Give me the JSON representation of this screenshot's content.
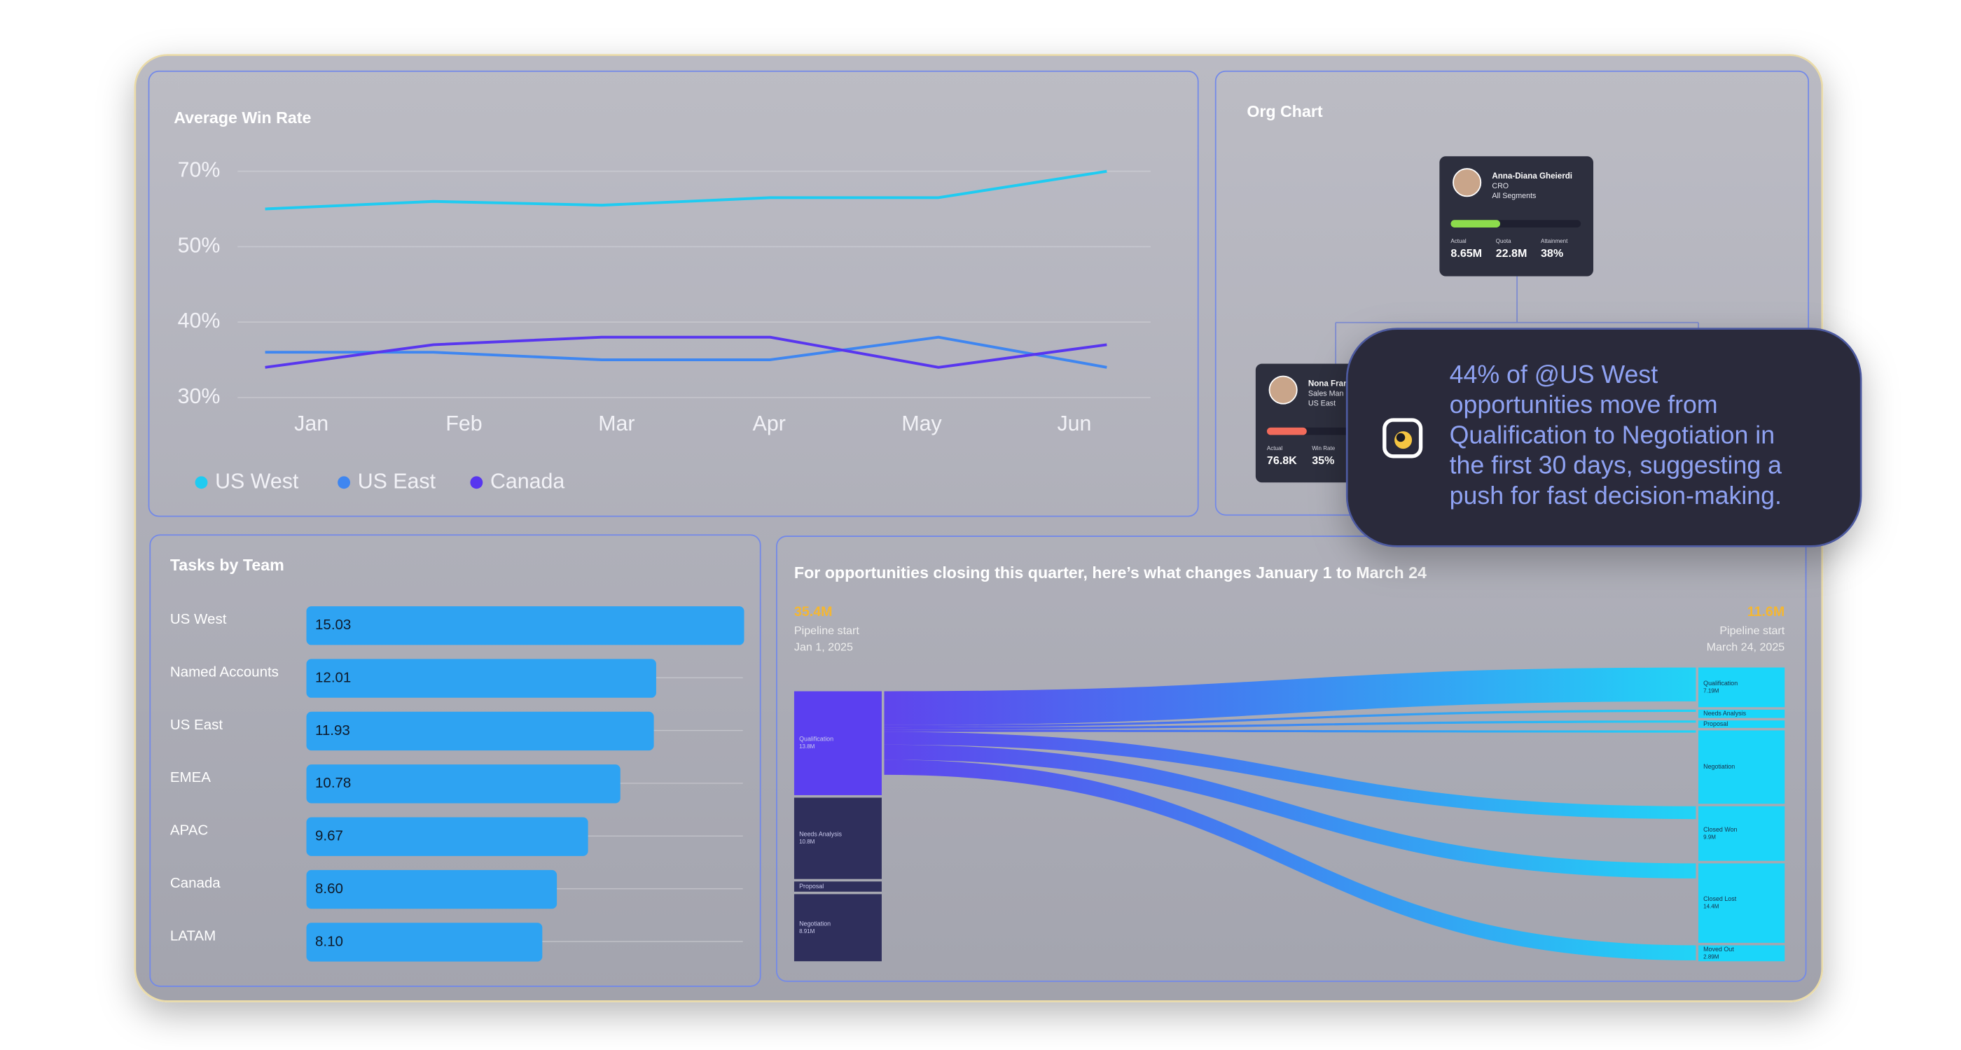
{
  "chart_data": [
    {
      "type": "line",
      "title": "Average Win Rate",
      "categories": [
        "Jan",
        "Feb",
        "Mar",
        "Apr",
        "May",
        "Jun"
      ],
      "series": [
        {
          "name": "US West",
          "color": "#1fcbf1",
          "values": [
            60,
            62,
            61,
            63,
            63,
            70
          ]
        },
        {
          "name": "US East",
          "color": "#3f86f0",
          "values": [
            36,
            36,
            35,
            35,
            38,
            34
          ]
        },
        {
          "name": "Canada",
          "color": "#5836ef",
          "values": [
            34,
            37,
            38,
            38,
            34,
            37
          ]
        }
      ],
      "ylim": [
        30,
        70
      ],
      "yticks": [
        {
          "value": 30,
          "label": "30%"
        },
        {
          "value": 40,
          "label": "40%"
        },
        {
          "value": 50,
          "label": "50%"
        },
        {
          "value": 70,
          "label": "70%"
        }
      ],
      "grid": true,
      "legend": "bottom-left"
    },
    {
      "type": "bar",
      "orientation": "horizontal",
      "title": "Tasks by Team",
      "categories": [
        "US West",
        "Named Accounts",
        "US East",
        "EMEA",
        "APAC",
        "Canada",
        "LATAM"
      ],
      "values": [
        15.03,
        12.01,
        11.93,
        10.78,
        9.67,
        8.6,
        8.1
      ],
      "value_labels": [
        "15.03",
        "12.01",
        "11.93",
        "10.78",
        "9.67",
        "8.60",
        "8.10"
      ],
      "color": "#2ea3f2"
    },
    {
      "type": "sankey",
      "title": "For opportunities closing this quarter, here’s what changes January 1 to March 24",
      "start": {
        "value_label": "35.4M",
        "label": "Pipeline start",
        "date": "Jan 1, 2025"
      },
      "end": {
        "value_label": "11.6M",
        "label": "Pipeline start",
        "date": "March 24, 2025"
      },
      "left_nodes": [
        {
          "label": "Qualification",
          "value": 13.8,
          "value_label": "13.8M",
          "color": "#5b3ff0"
        },
        {
          "label": "Needs Analysis",
          "value": 10.8,
          "value_label": "10.8M",
          "color": "#2f2f5c"
        },
        {
          "label": "Proposal",
          "value": 1.35,
          "color": "#2f2f5c"
        },
        {
          "label": "Negotiation",
          "value": 8.91,
          "value_label": "8.91M",
          "color": "#2f2f5c"
        }
      ],
      "right_nodes": [
        {
          "label": "Qualification",
          "value": 7.19,
          "value_label": "7.19M",
          "color": "#1ad6fa"
        },
        {
          "label": "Needs Analysis",
          "value": 1.5,
          "color": "#1ad6fa"
        },
        {
          "label": "Proposal",
          "value": 1.35,
          "color": "#1ad6fa"
        },
        {
          "label": "Negotiation",
          "value": 13.3,
          "color": "#1ad6fa"
        },
        {
          "label": "Closed Won",
          "value": 9.9,
          "value_label": "9.9M",
          "color": "#1ad6fa"
        },
        {
          "label": "Closed Lost",
          "value": 14.4,
          "value_label": "14.4M",
          "color": "#1ad6fa"
        },
        {
          "label": "Moved Out",
          "value": 2.89,
          "value_label": "2.89M",
          "color": "#1ad6fa"
        }
      ],
      "links": [
        {
          "source": "Qualification",
          "target": "Qualification",
          "value": 4.5
        },
        {
          "source": "Qualification",
          "target": "Needs Analysis",
          "value": 0.3
        },
        {
          "source": "Qualification",
          "target": "Proposal",
          "value": 0.3
        },
        {
          "source": "Qualification",
          "target": "Negotiation",
          "value": 0.3
        },
        {
          "source": "Qualification",
          "target": "Closed Won",
          "value": 1.7
        },
        {
          "source": "Qualification",
          "target": "Closed Lost",
          "value": 2.0
        },
        {
          "source": "Qualification",
          "target": "Moved Out",
          "value": 2.0
        }
      ]
    }
  ],
  "org_chart": {
    "title": "Org Chart",
    "cards": [
      {
        "name": "Anna-Diana Gheierdi",
        "role": "CRO",
        "segment": "All Segments",
        "bar_color": "#8ddc4c",
        "stats": [
          {
            "label": "Actual",
            "value": "8.65M"
          },
          {
            "label": "Quota",
            "value": "22.8M"
          },
          {
            "label": "Attainment",
            "value": 38,
            "value_label": "38%"
          }
        ]
      },
      {
        "name": "Nona Fran",
        "role": "Sales Man",
        "segment": "US East",
        "bar_color": "#f26b5b",
        "stats": [
          {
            "label": "Actual",
            "value": "76.8K"
          },
          {
            "label": "Win Rate",
            "value": 35,
            "value_label": "35%"
          }
        ]
      }
    ]
  },
  "insight": {
    "lines": [
      "44% of @US West",
      "opportunities move from",
      "Qualification to Negotiation in",
      "the first 30 days, suggesting a",
      "push for fast decision-making."
    ]
  }
}
